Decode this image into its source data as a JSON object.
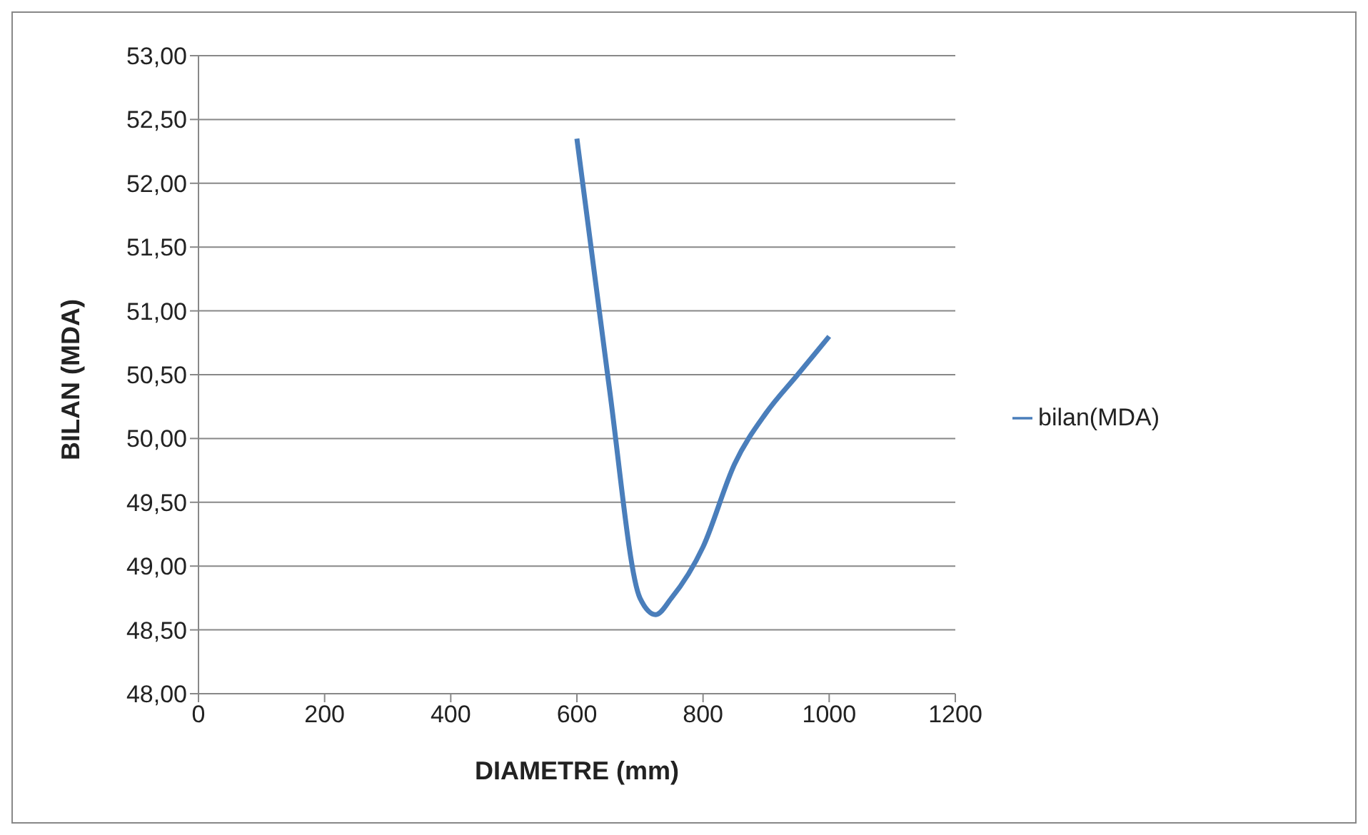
{
  "chart_data": {
    "type": "line",
    "xlabel": "DIAMETRE (mm)",
    "ylabel": "BILAN (MDA)",
    "x": [
      600,
      650,
      700,
      725,
      750,
      800,
      850,
      900,
      950,
      1000
    ],
    "series": [
      {
        "name": "bilan(MDA)",
        "color": "#4a7ebb",
        "values": [
          52.35,
          50.45,
          48.75,
          48.62,
          48.75,
          49.15,
          49.8,
          50.2,
          50.5,
          50.8
        ]
      }
    ],
    "xlim": [
      0,
      1200
    ],
    "xticks": [
      0,
      200,
      400,
      600,
      800,
      1000,
      1200
    ],
    "ylim": [
      48,
      53
    ],
    "yticks": [
      {
        "value": 48,
        "label": "48,00"
      },
      {
        "value": 48.5,
        "label": "48,50"
      },
      {
        "value": 49,
        "label": "49,00"
      },
      {
        "value": 49.5,
        "label": "49,50"
      },
      {
        "value": 50,
        "label": "50,00"
      },
      {
        "value": 50.5,
        "label": "50,50"
      },
      {
        "value": 51,
        "label": "51,00"
      },
      {
        "value": 51.5,
        "label": "51,50"
      },
      {
        "value": 52,
        "label": "52,00"
      },
      {
        "value": 52.5,
        "label": "52,50"
      },
      {
        "value": 53,
        "label": "53,00"
      }
    ],
    "grid": "y",
    "legend": "right",
    "marker": "none",
    "line_style": "solid"
  }
}
